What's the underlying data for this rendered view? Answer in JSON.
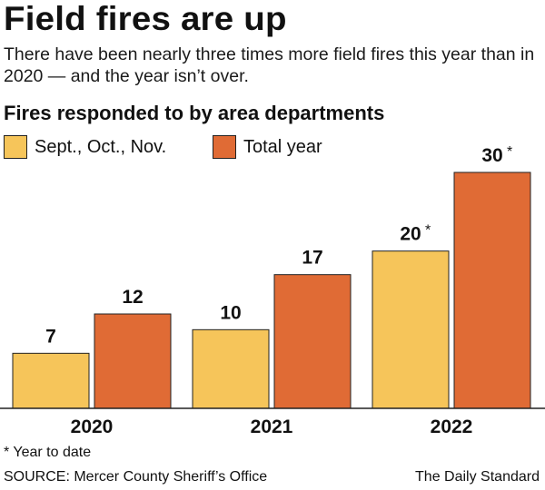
{
  "headline": "Field fires are up",
  "deck": "There have been nearly three times more field fires this year than in 2020 — and the year isn’t over.",
  "footnote": "* Year to date",
  "source": "SOURCE: Mercer County Sheriff’s Office",
  "credit": "The Daily Standard",
  "colors": {
    "sept_oct_nov": "#f6c55a",
    "total_year": "#e06b35",
    "outline": "#222222",
    "text": "#111111"
  },
  "chart_data": {
    "type": "bar",
    "title": "Fires responded to by area departments",
    "categories": [
      "2020",
      "2021",
      "2022"
    ],
    "series": [
      {
        "name": "Sept., Oct., Nov.",
        "values": [
          7,
          10,
          20
        ],
        "labels": [
          "7",
          "10",
          "20"
        ],
        "asterisk": [
          false,
          false,
          true
        ]
      },
      {
        "name": "Total year",
        "values": [
          12,
          17,
          30
        ],
        "labels": [
          "12",
          "17",
          "30"
        ],
        "asterisk": [
          false,
          false,
          true
        ]
      }
    ],
    "asterisk_text": "*",
    "ylim": [
      0,
      30
    ],
    "grid": false,
    "legend": "top-left"
  }
}
